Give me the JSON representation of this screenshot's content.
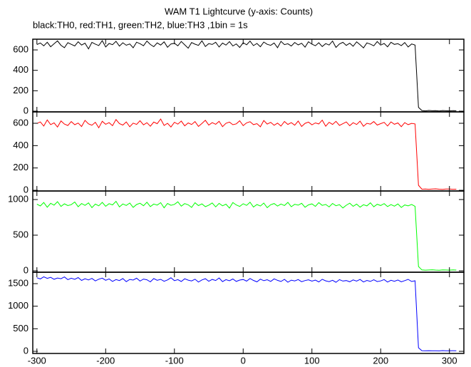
{
  "chart_data": {
    "type": "line",
    "title": "WAM T1 Lightcurve (y-axis: Counts)",
    "subtitle": "black:TH0, red:TH1, green:TH2, blue:TH3 ,1bin = 1s",
    "xlim": [
      -306,
      321
    ],
    "xticks": [
      -300,
      -200,
      -100,
      0,
      100,
      200,
      300
    ],
    "x": [
      -300,
      -295,
      -290,
      -285,
      -280,
      -275,
      -270,
      -265,
      -260,
      -255,
      -250,
      -245,
      -240,
      -235,
      -230,
      -225,
      -220,
      -215,
      -210,
      -205,
      -200,
      -195,
      -190,
      -185,
      -180,
      -175,
      -170,
      -165,
      -160,
      -155,
      -150,
      -145,
      -140,
      -135,
      -130,
      -125,
      -120,
      -115,
      -110,
      -105,
      -100,
      -95,
      -90,
      -85,
      -80,
      -75,
      -70,
      -65,
      -60,
      -55,
      -50,
      -45,
      -40,
      -35,
      -30,
      -25,
      -20,
      -15,
      -10,
      -5,
      0,
      5,
      10,
      15,
      20,
      25,
      30,
      35,
      40,
      45,
      50,
      55,
      60,
      65,
      70,
      75,
      80,
      85,
      90,
      95,
      100,
      105,
      110,
      115,
      120,
      125,
      130,
      135,
      140,
      145,
      150,
      155,
      160,
      165,
      170,
      175,
      180,
      185,
      190,
      195,
      200,
      205,
      210,
      215,
      220,
      225,
      230,
      235,
      240,
      245,
      250,
      255,
      260,
      265,
      270,
      275,
      280,
      285,
      290,
      295,
      300,
      305,
      310
    ],
    "series": [
      {
        "color": "#000000",
        "ylim": [
          -7,
          705
        ],
        "yticks": [
          0,
          200,
          400,
          600
        ],
        "values": [
          652,
          668,
          640,
          675,
          631,
          660,
          688,
          645,
          622,
          671,
          655,
          639,
          680,
          648,
          666,
          610,
          674,
          657,
          643,
          690,
          629,
          663,
          651,
          684,
          637,
          670,
          646,
          658,
          621,
          676,
          661,
          641,
          687,
          653,
          632,
          669,
          648,
          679,
          626,
          658,
          665,
          640,
          683,
          650,
          617,
          672,
          656,
          644,
          689,
          634,
          662,
          653,
          675,
          628,
          667,
          647,
          681,
          639,
          659,
          624,
          671,
          650,
          686,
          642,
          663,
          631,
          677,
          655,
          645,
          668,
          622,
          684,
          652,
          660,
          638,
          673,
          649,
          665,
          627,
          680,
          656,
          641,
          670,
          633,
          662,
          648,
          687,
          625,
          658,
          674,
          644,
          666,
          636,
          679,
          651,
          620,
          669,
          657,
          640,
          682,
          647,
          663,
          630,
          675,
          654,
          661,
          642,
          672,
          629,
          658,
          647,
          38,
          6,
          3,
          7,
          4,
          5,
          2,
          6,
          4,
          3,
          5,
          4
        ]
      },
      {
        "color": "#ff0000",
        "ylim": [
          -6,
          702
        ],
        "yticks": [
          0,
          200,
          400,
          600
        ],
        "values": [
          598,
          612,
          575,
          630,
          588,
          604,
          566,
          621,
          593,
          580,
          615,
          587,
          602,
          571,
          626,
          595,
          583,
          609,
          560,
          618,
          591,
          606,
          578,
          633,
          597,
          584,
          612,
          569,
          601,
          590,
          623,
          586,
          605,
          574,
          611,
          596,
          638,
          581,
          600,
          567,
          609,
          592,
          620,
          577,
          603,
          589,
          615,
          572,
          598,
          627,
          584,
          606,
          591,
          618,
          570,
          600,
          611,
          587,
          595,
          622,
          579,
          604,
          614,
          588,
          597,
          569,
          625,
          593,
          608,
          582,
          601,
          575,
          616,
          590,
          606,
          583,
          620,
          571,
          599,
          611,
          586,
          603,
          594,
          628,
          574,
          609,
          590,
          617,
          581,
          596,
          612,
          578,
          605,
          589,
          619,
          573,
          600,
          592,
          615,
          584,
          597,
          608,
          576,
          613,
          591,
          603,
          570,
          606,
          588,
          599,
          594,
          45,
          10,
          12,
          9,
          11,
          13,
          10,
          8,
          12,
          11,
          9,
          10
        ]
      },
      {
        "color": "#00ff00",
        "ylim": [
          -20,
          1120
        ],
        "yticks": [
          0,
          500,
          1000
        ],
        "values": [
          935,
          910,
          958,
          892,
          947,
          921,
          970,
          903,
          940,
          915,
          928,
          965,
          899,
          944,
          918,
          953,
          887,
          936,
          912,
          960,
          905,
          942,
          925,
          975,
          896,
          938,
          917,
          951,
          890,
          930,
          948,
          913,
          962,
          901,
          937,
          922,
          956,
          884,
          945,
          919,
          932,
          968,
          907,
          943,
          926,
          890,
          955,
          915,
          939,
          900,
          921,
          952,
          897,
          946,
          912,
          935,
          880,
          958,
          924,
          903,
          941,
          918,
          963,
          895,
          930,
          909,
          950,
          886,
          927,
          944,
          908,
          937,
          916,
          960,
          899,
          933,
          921,
          947,
          892,
          925,
          939,
          904,
          957,
          918,
          931,
          896,
          945,
          913,
          928,
          882,
          920,
          949,
          905,
          936,
          893,
          927,
          911,
          954,
          898,
          934,
          916,
          943,
          901,
          929,
          907,
          938,
          889,
          924,
          912,
          931,
          905,
          60,
          12,
          9,
          11,
          14,
          10,
          8,
          13,
          11,
          9,
          12,
          10
        ]
      },
      {
        "color": "#0000ff",
        "ylim": [
          -47,
          1753
        ],
        "yticks": [
          0,
          500,
          1000,
          1500
        ],
        "values": [
          1630,
          1605,
          1652,
          1618,
          1640,
          1597,
          1625,
          1610,
          1648,
          1588,
          1620,
          1595,
          1635,
          1572,
          1608,
          1583,
          1615,
          1560,
          1598,
          1622,
          1575,
          1604,
          1550,
          1590,
          1568,
          1612,
          1545,
          1593,
          1580,
          1620,
          1557,
          1601,
          1586,
          1540,
          1612,
          1574,
          1595,
          1552,
          1583,
          1630,
          1566,
          1589,
          1548,
          1607,
          1577,
          1560,
          1598,
          1535,
          1582,
          1610,
          1553,
          1594,
          1570,
          1625,
          1545,
          1588,
          1563,
          1603,
          1549,
          1580,
          1592,
          1556,
          1614,
          1571,
          1540,
          1600,
          1565,
          1587,
          1550,
          1606,
          1573,
          1548,
          1595,
          1532,
          1578,
          1560,
          1590,
          1543,
          1569,
          1585,
          1555,
          1580,
          1538,
          1597,
          1562,
          1545,
          1575,
          1530,
          1588,
          1558,
          1568,
          1542,
          1583,
          1556,
          1593,
          1537,
          1572,
          1550,
          1586,
          1546,
          1561,
          1590,
          1535,
          1574,
          1552,
          1581,
          1540,
          1567,
          1595,
          1548,
          1563,
          80,
          14,
          12,
          15,
          11,
          13,
          10,
          16,
          12,
          11,
          14,
          12
        ]
      }
    ]
  }
}
